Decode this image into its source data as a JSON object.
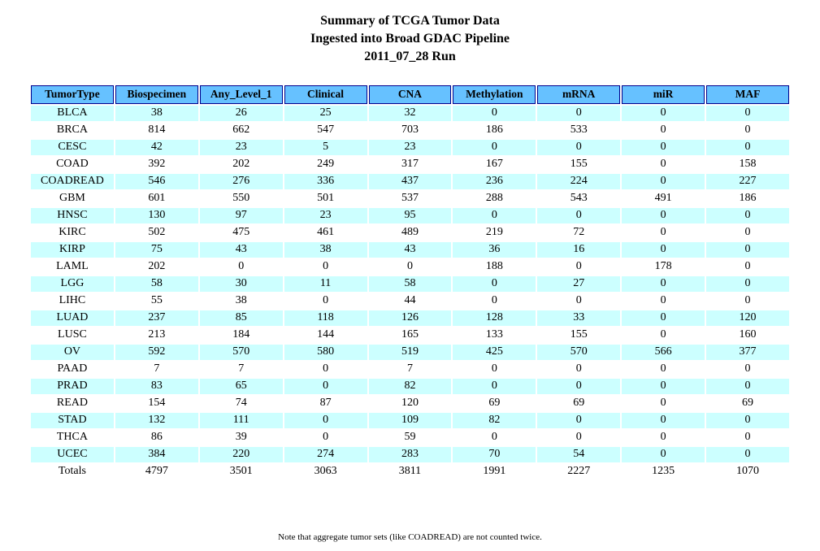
{
  "title": {
    "line1": "Summary of TCGA Tumor Data",
    "line2": "Ingested into Broad GDAC Pipeline",
    "line3": "2011_07_28 Run"
  },
  "footnote": "Note that aggregate tumor sets (like COADREAD) are not counted twice.",
  "colors": {
    "header_bg": "#66C1FF",
    "header_border": "#00008B",
    "row_alt_bg": "#CCFFFF",
    "row_bg": "#FFFFFF",
    "text": "#000000"
  },
  "chart_data": {
    "type": "table",
    "title": "Summary of TCGA Tumor Data Ingested into Broad GDAC Pipeline 2011_07_28 Run",
    "columns": [
      "TumorType",
      "Biospecimen",
      "Any_Level_1",
      "Clinical",
      "CNA",
      "Methylation",
      "mRNA",
      "miR",
      "MAF"
    ],
    "rows": [
      {
        "tumor_type": "BLCA",
        "values": [
          38,
          26,
          25,
          32,
          0,
          0,
          0,
          0
        ]
      },
      {
        "tumor_type": "BRCA",
        "values": [
          814,
          662,
          547,
          703,
          186,
          533,
          0,
          0
        ]
      },
      {
        "tumor_type": "CESC",
        "values": [
          42,
          23,
          5,
          23,
          0,
          0,
          0,
          0
        ]
      },
      {
        "tumor_type": "COAD",
        "values": [
          392,
          202,
          249,
          317,
          167,
          155,
          0,
          158
        ]
      },
      {
        "tumor_type": "COADREAD",
        "values": [
          546,
          276,
          336,
          437,
          236,
          224,
          0,
          227
        ]
      },
      {
        "tumor_type": "GBM",
        "values": [
          601,
          550,
          501,
          537,
          288,
          543,
          491,
          186
        ]
      },
      {
        "tumor_type": "HNSC",
        "values": [
          130,
          97,
          23,
          95,
          0,
          0,
          0,
          0
        ]
      },
      {
        "tumor_type": "KIRC",
        "values": [
          502,
          475,
          461,
          489,
          219,
          72,
          0,
          0
        ]
      },
      {
        "tumor_type": "KIRP",
        "values": [
          75,
          43,
          38,
          43,
          36,
          16,
          0,
          0
        ]
      },
      {
        "tumor_type": "LAML",
        "values": [
          202,
          0,
          0,
          0,
          188,
          0,
          178,
          0
        ]
      },
      {
        "tumor_type": "LGG",
        "values": [
          58,
          30,
          11,
          58,
          0,
          27,
          0,
          0
        ]
      },
      {
        "tumor_type": "LIHC",
        "values": [
          55,
          38,
          0,
          44,
          0,
          0,
          0,
          0
        ]
      },
      {
        "tumor_type": "LUAD",
        "values": [
          237,
          85,
          118,
          126,
          128,
          33,
          0,
          120
        ]
      },
      {
        "tumor_type": "LUSC",
        "values": [
          213,
          184,
          144,
          165,
          133,
          155,
          0,
          160
        ]
      },
      {
        "tumor_type": "OV",
        "values": [
          592,
          570,
          580,
          519,
          425,
          570,
          566,
          377
        ]
      },
      {
        "tumor_type": "PAAD",
        "values": [
          7,
          7,
          0,
          7,
          0,
          0,
          0,
          0
        ]
      },
      {
        "tumor_type": "PRAD",
        "values": [
          83,
          65,
          0,
          82,
          0,
          0,
          0,
          0
        ]
      },
      {
        "tumor_type": "READ",
        "values": [
          154,
          74,
          87,
          120,
          69,
          69,
          0,
          69
        ]
      },
      {
        "tumor_type": "STAD",
        "values": [
          132,
          111,
          0,
          109,
          82,
          0,
          0,
          0
        ]
      },
      {
        "tumor_type": "THCA",
        "values": [
          86,
          39,
          0,
          59,
          0,
          0,
          0,
          0
        ]
      },
      {
        "tumor_type": "UCEC",
        "values": [
          384,
          220,
          274,
          283,
          70,
          54,
          0,
          0
        ]
      },
      {
        "tumor_type": "Totals",
        "values": [
          4797,
          3501,
          3063,
          3811,
          1991,
          2227,
          1235,
          1070
        ]
      }
    ]
  }
}
